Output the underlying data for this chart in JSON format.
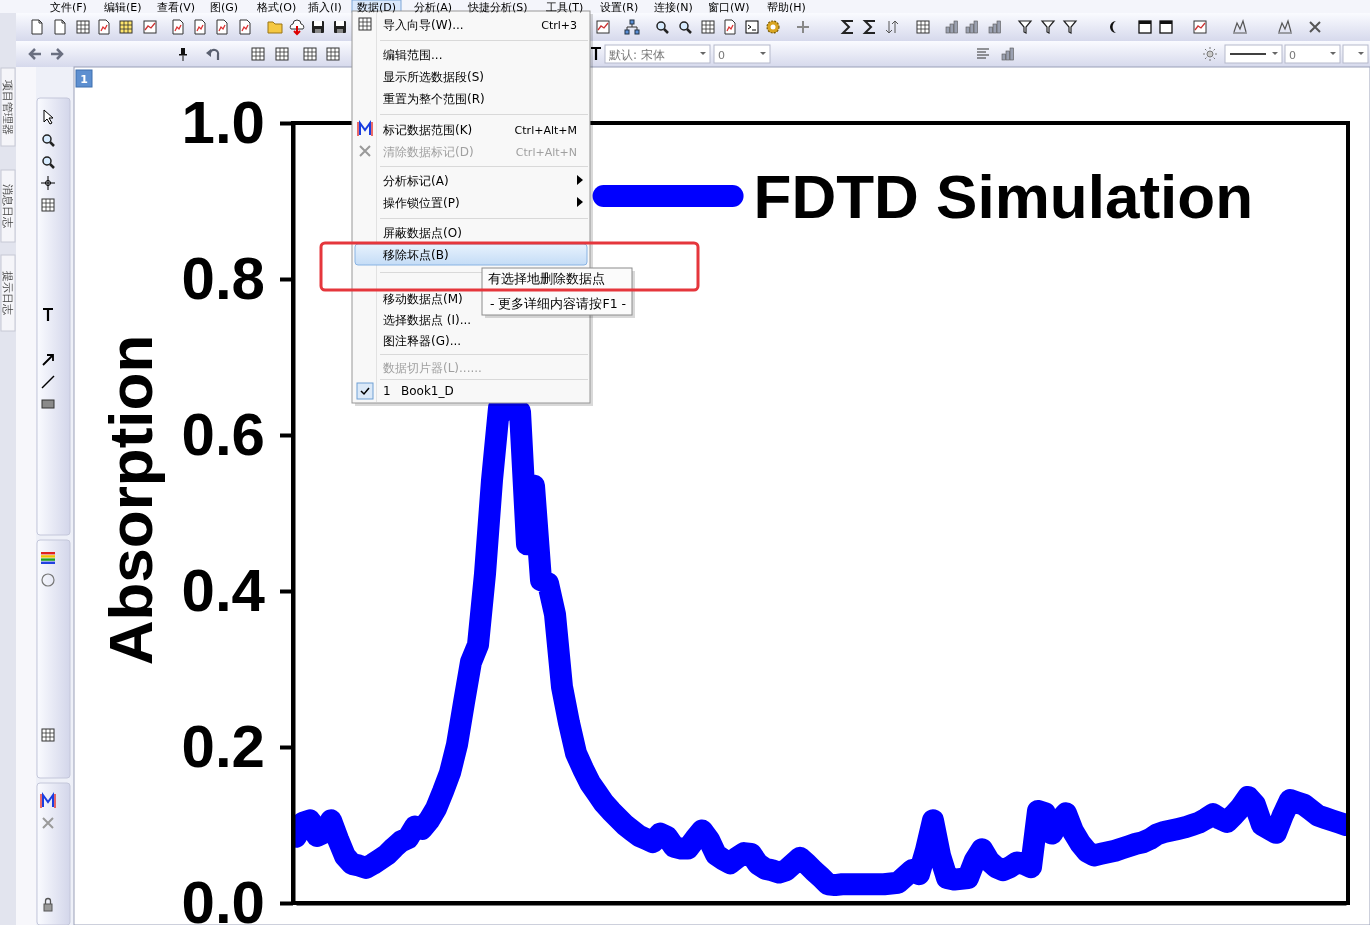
{
  "chart_data": {
    "type": "line",
    "categories": [
      null,
      null,
      null,
      null,
      null,
      null,
      null,
      null,
      null,
      null,
      null,
      null,
      null,
      null,
      null,
      null,
      null,
      null,
      null,
      null,
      null,
      null,
      null,
      null,
      null,
      null,
      null,
      null,
      null,
      null,
      null,
      null,
      null,
      null,
      null,
      null,
      null,
      null,
      null,
      null,
      null,
      null,
      null,
      null,
      null,
      null,
      null,
      null,
      null,
      null,
      null,
      null,
      null,
      null,
      null,
      null,
      null,
      null,
      null,
      null,
      null,
      null,
      null,
      null,
      null,
      null,
      null,
      null,
      null,
      null,
      null,
      null,
      null,
      null,
      null,
      null,
      null,
      null,
      null,
      null,
      null,
      null,
      null,
      null,
      null,
      null,
      null,
      null,
      null,
      null,
      null,
      null,
      null,
      null,
      null,
      null,
      null,
      null,
      null,
      null,
      null,
      null,
      null,
      null,
      null,
      null,
      null,
      null,
      null,
      null,
      null,
      null,
      null,
      null,
      null,
      null,
      null,
      null,
      null,
      null,
      null,
      null,
      null,
      null,
      null,
      null,
      null,
      null,
      null,
      null,
      null,
      null,
      null,
      null,
      null,
      null,
      null,
      null,
      null,
      null,
      null,
      null,
      null,
      null,
      null,
      null,
      null,
      null,
      null,
      null,
      null
    ],
    "series": [
      {
        "name": "FDTD Simulation",
        "color": "#0000ff",
        "values": [
          0.085,
          0.103,
          0.106,
          0.086,
          0.09,
          0.106,
          0.082,
          0.06,
          0.05,
          0.048,
          0.045,
          0.05,
          0.056,
          0.062,
          0.071,
          0.079,
          0.083,
          0.098,
          0.095,
          0.106,
          0.121,
          0.143,
          0.167,
          0.203,
          0.257,
          0.309,
          0.331,
          0.422,
          0.542,
          0.635,
          null,
          null,
          0.63,
          0.46,
          0.535,
          0.414,
          0.41,
          0.37,
          0.277,
          0.231,
          0.192,
          0.172,
          0.154,
          0.141,
          0.128,
          0.118,
          0.109,
          0.1,
          0.093,
          0.086,
          0.082,
          0.078,
          0.089,
          0.085,
          0.072,
          0.07,
          0.07,
          0.082,
          0.093,
          0.081,
          0.062,
          0.056,
          0.051,
          0.058,
          0.064,
          0.063,
          0.05,
          0.044,
          0.042,
          0.039,
          0.042,
          0.05,
          0.058,
          0.05,
          0.041,
          0.033,
          0.024,
          0.023,
          0.024,
          0.024,
          0.024,
          0.024,
          0.024,
          0.024,
          0.024,
          0.025,
          0.026,
          0.034,
          0.042,
          0.037,
          0.068,
          0.106,
          0.061,
          0.032,
          0.03,
          0.031,
          0.032,
          0.055,
          0.069,
          0.054,
          0.046,
          0.042,
          0.046,
          0.052,
          0.05,
          0.046,
          0.118,
          0.115,
          0.089,
          0.105,
          0.115,
          0.092,
          0.077,
          0.066,
          0.061,
          0.063,
          0.065,
          0.067,
          0.07,
          0.073,
          0.076,
          0.078,
          0.082,
          0.088,
          0.091,
          0.093,
          0.095,
          0.097,
          0.1,
          0.103,
          0.108,
          0.114,
          0.108,
          0.104,
          0.113,
          0.123,
          0.136,
          0.126,
          0.1,
          0.095,
          0.09,
          0.113,
          0.132,
          0.129,
          0.126,
          0.119,
          0.112,
          0.109,
          0.106,
          0.103,
          0.1
        ]
      }
    ],
    "ylabel": "Absorption",
    "ylim": [
      0,
      1
    ],
    "yticks": [
      {
        "value": 0,
        "label": "0.0"
      },
      {
        "value": 0.2,
        "label": "0.2"
      },
      {
        "value": 0.4,
        "label": "0.4"
      },
      {
        "value": 0.6,
        "label": "0.6"
      },
      {
        "value": 0.8,
        "label": "0.8"
      },
      {
        "value": 1,
        "label": "1.0"
      }
    ],
    "tick_labels": "y",
    "legend": "top right",
    "annotations": [
      "文件(F)",
      "编辑(E)",
      "查看(V)",
      "图(G)",
      "格式(O)",
      "插入(I)",
      "数据(D)",
      "分析(A)",
      "快捷分析(S)",
      "工具(T)",
      "设置(R)",
      "连接(N)",
      "窗口(W)",
      "帮助(H)",
      "导入向导(W)...",
      "Ctrl+3",
      "编辑范围...",
      "显示所选数据段(S)",
      "重置为整个范围(R)",
      "标记数据范围(K)",
      "Ctrl+Alt+M",
      "清除数据标记(D)",
      "Ctrl+Alt+N",
      "分析标记(A)",
      "操作锁位置(P)",
      "屏蔽数据点(O)",
      "移除坏点(B)",
      "移动数据点(M)",
      "选择数据点 (I)...",
      "图注释器(G)...",
      "数据切片器(L)......",
      "1",
      "Book1_D",
      "有选择地删除数据点",
      "- 更多详细内容请按F1 -",
      "项目管理器",
      "消息日志",
      "提示日志",
      "默认: 宋体",
      "0",
      "0",
      "1"
    ]
  }
}
